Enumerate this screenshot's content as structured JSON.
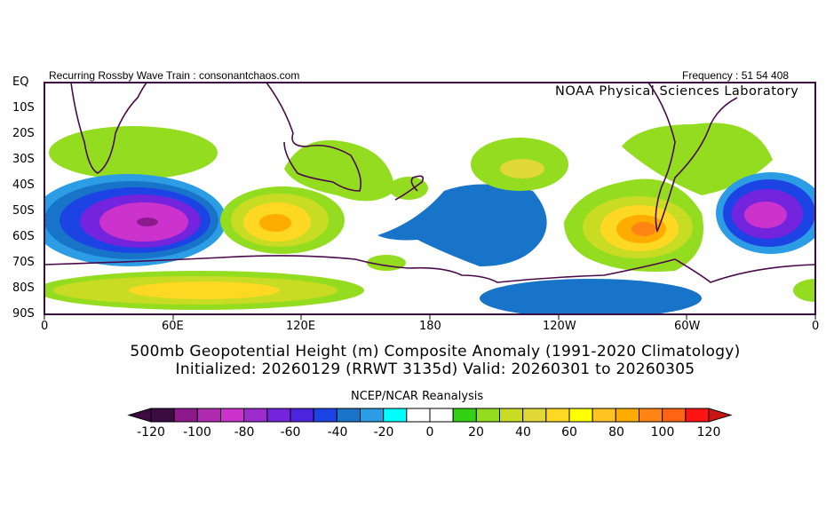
{
  "header": {
    "left": "Recurring Rossby Wave Train : consonantchaos.com",
    "right": "Frequency : 51 54 408",
    "org": "NOAA Physical Sciences Laboratory"
  },
  "map": {
    "lat_labels": [
      "EQ",
      "10S",
      "20S",
      "30S",
      "40S",
      "50S",
      "60S",
      "70S",
      "80S",
      "90S"
    ],
    "lon_labels": [
      "0",
      "60E",
      "120E",
      "180",
      "120W",
      "60W",
      "0"
    ]
  },
  "title": {
    "line1": "500mb Geopotential Height (m) Composite Anomaly (1991-2020 Climatology)",
    "line2": "Initialized: 20260129 (RRWT 3135d) Valid: 20260301 to 20260305"
  },
  "colorbar": {
    "title": "NCEP/NCAR Reanalysis",
    "tick_labels": [
      "-120",
      "-100",
      "-80",
      "-60",
      "-40",
      "-20",
      "0",
      "20",
      "40",
      "60",
      "80",
      "100",
      "120"
    ],
    "colors": [
      "#3c0b40",
      "#8c1a8c",
      "#b02ab0",
      "#cc33cc",
      "#9c2ccc",
      "#7424dc",
      "#4c24e0",
      "#1c44e4",
      "#1874c8",
      "#2c9ce4",
      "#00ffff",
      "#ffffff",
      "#ffffff",
      "#34d014",
      "#94dc20",
      "#c8dc24",
      "#e0d834",
      "#ffd824",
      "#ffff00",
      "#ffc424",
      "#ffac00",
      "#ff8414",
      "#ff6414",
      "#ff1414"
    ],
    "under_color": "#3c0b40",
    "over_color": "#cc1414"
  }
}
